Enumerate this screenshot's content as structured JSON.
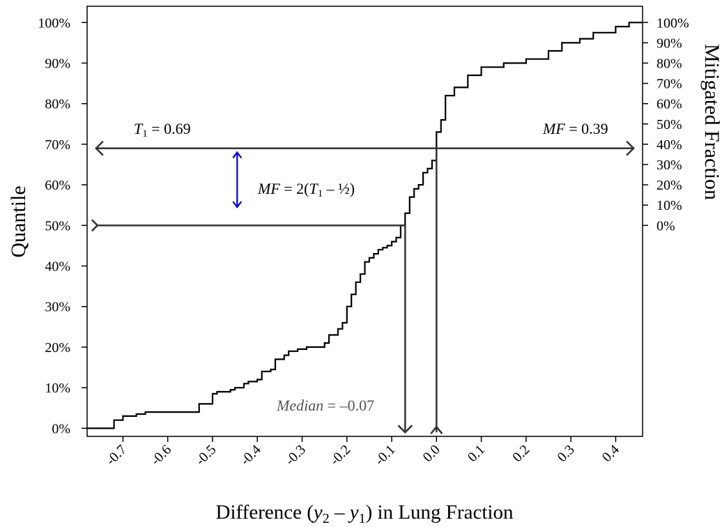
{
  "chart_data": {
    "type": "line",
    "xlabel": {
      "pre": "Difference (",
      "y": "y",
      "s2": "2",
      "dash": " – ",
      "s1": "1",
      "post": ") in Lung Fraction"
    },
    "ylabel_left": "Quantile",
    "ylabel_right": "Mitigated Fraction",
    "xlim": [
      -0.78,
      0.46
    ],
    "ylim": [
      -0.02,
      1.04
    ],
    "x_ticks": [
      -0.7,
      -0.6,
      -0.5,
      -0.4,
      -0.3,
      -0.2,
      -0.1,
      0.0,
      0.1,
      0.2,
      0.3,
      0.4
    ],
    "x_tick_labels": [
      "-0.7",
      "-0.6",
      "-0.5",
      "-0.4",
      "-0.3",
      "-0.2",
      "-0.1",
      "0.0",
      "0.1",
      "0.2",
      "0.3",
      "0.4"
    ],
    "y_ticks": [
      0,
      0.1,
      0.2,
      0.3,
      0.4,
      0.5,
      0.6,
      0.7,
      0.8,
      0.9,
      1.0
    ],
    "y_tick_labels": [
      "0%",
      "10%",
      "20%",
      "30%",
      "40%",
      "50%",
      "60%",
      "70%",
      "80%",
      "90%",
      "100%"
    ],
    "right_ticks": [
      0.5,
      0.55,
      0.6,
      0.65,
      0.7,
      0.75,
      0.8,
      0.85,
      0.9,
      0.95,
      1.0
    ],
    "right_tick_labels": [
      "0%",
      "10%",
      "20%",
      "30%",
      "40%",
      "50%",
      "60%",
      "70%",
      "80%",
      "90%",
      "100%"
    ],
    "ecdf": {
      "x": [
        -0.78,
        -0.72,
        -0.72,
        -0.7,
        -0.7,
        -0.67,
        -0.65,
        -0.6,
        -0.55,
        -0.53,
        -0.53,
        -0.5,
        -0.5,
        -0.49,
        -0.46,
        -0.45,
        -0.43,
        -0.42,
        -0.4,
        -0.39,
        -0.37,
        -0.36,
        -0.36,
        -0.34,
        -0.33,
        -0.31,
        -0.29,
        -0.27,
        -0.25,
        -0.24,
        -0.22,
        -0.21,
        -0.2,
        -0.2,
        -0.19,
        -0.19,
        -0.18,
        -0.18,
        -0.17,
        -0.17,
        -0.16,
        -0.16,
        -0.15,
        -0.14,
        -0.13,
        -0.12,
        -0.11,
        -0.1,
        -0.09,
        -0.08,
        -0.07,
        -0.06,
        -0.05,
        -0.04,
        -0.03,
        -0.02,
        -0.01,
        0.0,
        0.0,
        0.01,
        0.02,
        0.04,
        0.07,
        0.1,
        0.15,
        0.2,
        0.25,
        0.28,
        0.32,
        0.35,
        0.4,
        0.4,
        0.43,
        0.46
      ],
      "y": [
        0.0,
        0.0,
        0.02,
        0.02,
        0.03,
        0.035,
        0.04,
        0.04,
        0.04,
        0.045,
        0.06,
        0.06,
        0.085,
        0.09,
        0.095,
        0.1,
        0.11,
        0.115,
        0.12,
        0.14,
        0.145,
        0.15,
        0.17,
        0.18,
        0.19,
        0.195,
        0.2,
        0.2,
        0.21,
        0.23,
        0.245,
        0.26,
        0.27,
        0.3,
        0.31,
        0.33,
        0.345,
        0.36,
        0.365,
        0.38,
        0.39,
        0.41,
        0.42,
        0.43,
        0.44,
        0.445,
        0.45,
        0.46,
        0.47,
        0.5,
        0.53,
        0.57,
        0.59,
        0.6,
        0.63,
        0.64,
        0.66,
        0.665,
        0.73,
        0.76,
        0.82,
        0.84,
        0.87,
        0.89,
        0.9,
        0.91,
        0.93,
        0.95,
        0.96,
        0.975,
        0.98,
        0.99,
        1.0,
        1.0
      ]
    },
    "annotations": {
      "t1_label": {
        "sym": "T",
        "sub": "1",
        "val": " = 0.69"
      },
      "mf_label": {
        "sym": "MF",
        "val": " = 0.39"
      },
      "formula": {
        "sym": "MF",
        "eq": " = 2(",
        "t": "T",
        "sub": "1",
        "rest": " – ½)"
      },
      "median_label": {
        "sym": "Median",
        "val": " = –0.07"
      }
    },
    "reference_lines": {
      "horizontal_70": {
        "y": 0.69,
        "x_from": -0.76,
        "x_to": 0.44
      },
      "horizontal_50": {
        "y": 0.5,
        "x_from": -0.76,
        "x_to": -0.07
      },
      "vertical_median": {
        "x": -0.07,
        "y_from": 0.5,
        "y_to": -0.01
      },
      "vertical_zero": {
        "x": 0.0,
        "y_from": 0.69,
        "y_to": -0.01
      },
      "blue_arrow": {
        "x": -0.445,
        "y_from": 0.545,
        "y_to": 0.68
      }
    },
    "colors": {
      "curve": "#000000",
      "guides": "#333333",
      "arrow": "#0000cc",
      "axis": "#000000",
      "median_text": "#555555"
    }
  }
}
